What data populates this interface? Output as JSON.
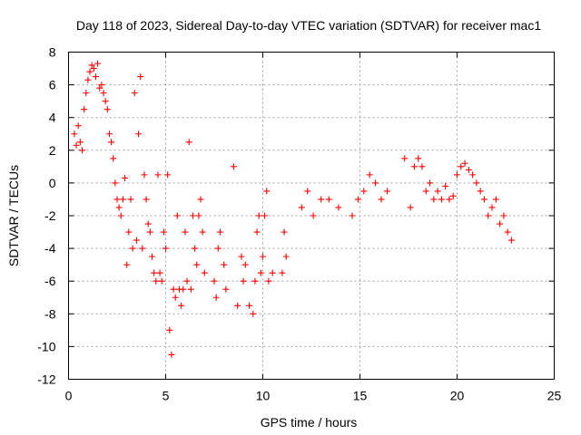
{
  "chart_data": {
    "type": "scatter",
    "title": "Day 118 of 2023, Sidereal Day-to-day VTEC variation (SDTVAR) for receiver mac1",
    "xlabel": "GPS time / hours",
    "ylabel": "SDTVAR / TECUs",
    "xlim": [
      0,
      25
    ],
    "ylim": [
      -12,
      8
    ],
    "xticks": [
      0,
      5,
      10,
      15,
      20,
      25
    ],
    "xtick_labels": [
      "0",
      "5",
      "10",
      "15",
      "20",
      "25"
    ],
    "yticks": [
      8,
      6,
      4,
      2,
      0,
      -2,
      -4,
      -6,
      -8,
      -10,
      -12
    ],
    "ytick_labels": [
      "8",
      "6",
      "4",
      "2",
      "0",
      "-2",
      "-4",
      "-6",
      "-8",
      "-10",
      "-12"
    ],
    "grid": true,
    "marker": "plus",
    "color": "#ff0000",
    "series": [
      {
        "name": "SDTVAR",
        "x": [
          0.3,
          0.4,
          0.5,
          0.6,
          0.7,
          0.8,
          0.9,
          1.0,
          1.1,
          1.2,
          1.3,
          1.4,
          1.5,
          1.6,
          1.7,
          1.8,
          1.9,
          2.0,
          2.1,
          2.2,
          2.3,
          2.4,
          2.5,
          2.6,
          2.7,
          2.8,
          2.9,
          3.0,
          3.1,
          3.2,
          3.3,
          3.4,
          3.5,
          3.6,
          3.7,
          3.8,
          3.9,
          4.0,
          4.1,
          4.2,
          4.3,
          4.4,
          4.5,
          4.6,
          4.7,
          4.8,
          4.9,
          5.0,
          5.1,
          5.2,
          5.3,
          5.4,
          5.5,
          5.6,
          5.7,
          5.8,
          5.9,
          6.0,
          6.1,
          6.2,
          6.3,
          6.4,
          6.5,
          6.6,
          6.7,
          6.8,
          6.9,
          7.0,
          7.5,
          7.6,
          7.7,
          7.8,
          8.0,
          8.1,
          8.5,
          8.7,
          8.9,
          9.0,
          9.1,
          9.3,
          9.5,
          9.6,
          9.7,
          9.8,
          9.9,
          10.0,
          10.1,
          10.2,
          10.3,
          10.5,
          11.0,
          11.1,
          11.2,
          12.0,
          12.3,
          12.6,
          13.0,
          13.4,
          13.9,
          14.6,
          14.9,
          15.2,
          15.5,
          15.8,
          16.1,
          16.4,
          17.3,
          17.6,
          17.8,
          18.0,
          18.2,
          18.4,
          18.6,
          18.8,
          19.0,
          19.2,
          19.4,
          19.6,
          19.8,
          20.0,
          20.2,
          20.4,
          20.6,
          20.8,
          21.0,
          21.2,
          21.4,
          21.6,
          21.8,
          22.0,
          22.2,
          22.4,
          22.6,
          22.8
        ],
        "y": [
          3.0,
          2.3,
          3.5,
          2.5,
          2.0,
          4.5,
          5.5,
          6.3,
          6.8,
          7.2,
          7.0,
          6.5,
          7.3,
          5.8,
          6.0,
          5.5,
          5.0,
          4.5,
          3.0,
          2.5,
          1.5,
          0.0,
          -1.0,
          -1.5,
          -2.0,
          -1.0,
          0.3,
          -5.0,
          -3.0,
          -1.0,
          -4.0,
          5.5,
          -3.5,
          3.0,
          6.5,
          -4.0,
          0.5,
          -1.0,
          -2.5,
          -3.0,
          -4.5,
          -5.5,
          -6.0,
          0.5,
          -5.5,
          -6.0,
          -3.0,
          -4.0,
          0.5,
          -9.0,
          -10.5,
          -6.5,
          -7.0,
          -2.0,
          -6.5,
          -7.5,
          -6.5,
          -3.0,
          -6.0,
          2.5,
          -6.5,
          -2.0,
          -4.0,
          -5.0,
          -2.0,
          -1.0,
          -3.0,
          -5.5,
          -6.0,
          -7.0,
          -4.0,
          -3.0,
          -5.0,
          -6.5,
          1.0,
          -7.5,
          -4.5,
          -6.0,
          -5.0,
          -7.5,
          -8.0,
          -6.0,
          -3.0,
          -2.0,
          -5.5,
          -4.5,
          -2.0,
          -0.5,
          -6.0,
          -5.5,
          -5.5,
          -3.0,
          -4.5,
          -1.5,
          -0.5,
          -2.0,
          -1.0,
          -1.0,
          -1.5,
          -2.0,
          -1.0,
          -0.5,
          0.5,
          0.0,
          -1.0,
          -0.5,
          1.5,
          -1.5,
          1.0,
          1.5,
          1.0,
          -0.5,
          0.0,
          -1.0,
          -0.5,
          -1.0,
          -0.2,
          -1.0,
          -0.8,
          0.5,
          1.0,
          1.2,
          0.8,
          0.5,
          0.0,
          -0.5,
          -1.0,
          -2.0,
          -1.5,
          -1.0,
          -2.5,
          -2.0,
          -3.0,
          -3.5
        ]
      }
    ]
  }
}
